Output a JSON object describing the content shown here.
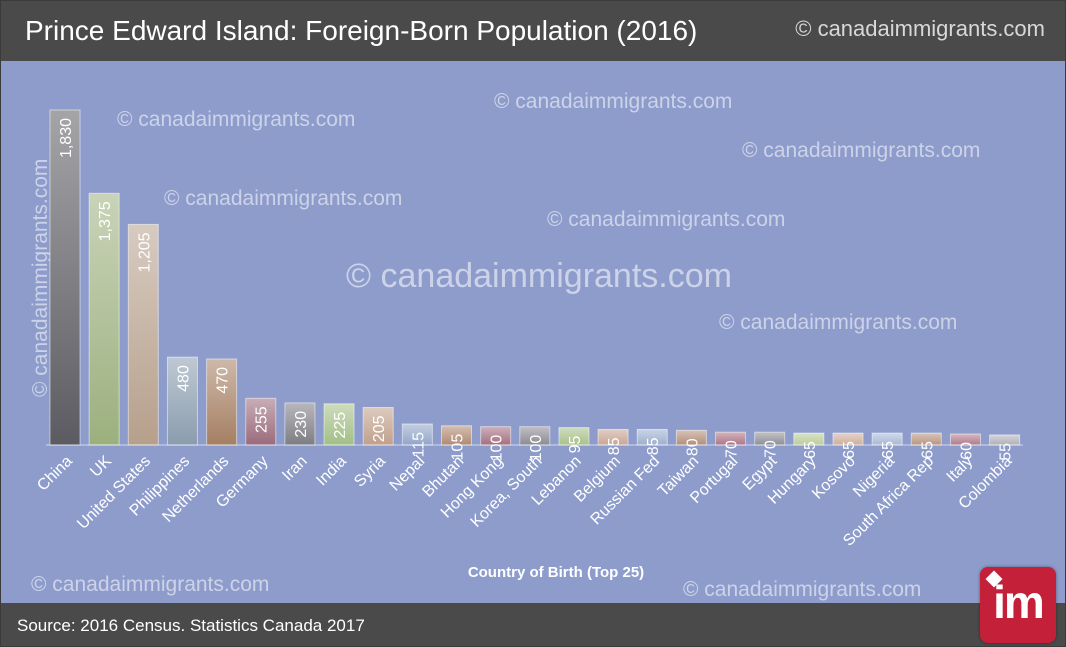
{
  "header": {
    "title": "Prince Edward Island: Foreign-Born Population (2016)",
    "watermark": "© canadaimmigrants.com"
  },
  "footer": {
    "source": "Source: 2016 Census. Statistics Canada 2017"
  },
  "watermarks": {
    "text": "© canadaimmigrants.com"
  },
  "logo": {
    "text": "im",
    "icon": "maple-leaf-icon"
  },
  "colors": {
    "header_bg": "#4a4a4a",
    "plot_bg": "#8e9ccc",
    "logo_bg": "#c4203a"
  },
  "chart_data": {
    "type": "bar",
    "title": "Prince Edward Island: Foreign-Born Population (2016)",
    "xlabel": "Country of Birth (Top 25)",
    "ylabel": "",
    "ylim": [
      0,
      1900
    ],
    "grid": false,
    "legend": "none",
    "categories": [
      "China",
      "UK",
      "United States",
      "Philippines",
      "Netherlands",
      "Germany",
      "Iran",
      "India",
      "Syria",
      "Nepal",
      "Bhutan",
      "Hong Kong",
      "Korea, South",
      "Lebanon",
      "Belgium",
      "Russian Fed",
      "Taiwan",
      "Portugal",
      "Egypt",
      "Hungary",
      "Kosovo",
      "Nigeria",
      "South Africa Rep",
      "Italy",
      "Colombia"
    ],
    "values": [
      1830,
      1375,
      1205,
      480,
      470,
      255,
      230,
      225,
      205,
      115,
      105,
      100,
      100,
      95,
      85,
      85,
      80,
      70,
      70,
      65,
      65,
      65,
      65,
      60,
      55
    ],
    "value_labels": [
      "1,830",
      "1,375",
      "1,205",
      "480",
      "470",
      "255",
      "230",
      "225",
      "205",
      "115",
      "105",
      "100",
      "100",
      "95",
      "85",
      "85",
      "80",
      "70",
      "70",
      "65",
      "65",
      "65",
      "65",
      "60",
      "55"
    ],
    "bar_colors": [
      "#5b5b61",
      "#9cb07e",
      "#b6a08c",
      "#8a9cae",
      "#a57f62",
      "#9a6b7c",
      "#7d7d84",
      "#a3bf86",
      "#c0a08c",
      "#93a6c9",
      "#b08a72",
      "#a56f80",
      "#8b8b93",
      "#a8c08b",
      "#c8a694",
      "#9eb0cf",
      "#b38f7a",
      "#ad7688",
      "#8e8e96",
      "#b9cd98",
      "#cfae9c",
      "#a8b8d6",
      "#b8957f",
      "#b07b8d",
      "#b0b0b8"
    ]
  }
}
